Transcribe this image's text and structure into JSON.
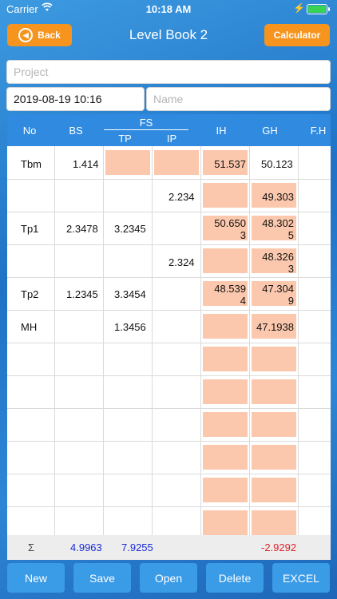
{
  "status_bar": {
    "carrier": "Carrier",
    "time": "10:18 AM"
  },
  "header": {
    "back_label": "Back",
    "title": "Level Book 2",
    "calculator_label": "Calculator"
  },
  "form": {
    "project_placeholder": "Project",
    "date_value": "2019-08-19 10:16",
    "name_placeholder": "Name"
  },
  "table": {
    "headers": {
      "no": "No",
      "bs": "BS",
      "fs": "FS",
      "tp": "TP",
      "ip": "IP",
      "ih": "IH",
      "gh": "GH",
      "fh": "F.H"
    },
    "rows": [
      {
        "no": "Tbm",
        "bs": "1.414",
        "tp": "",
        "ip": "",
        "ih": "51.537",
        "gh": "50.123"
      },
      {
        "no": "",
        "bs": "",
        "tp": "",
        "ip": "2.234",
        "ih": "",
        "gh": "49.303"
      },
      {
        "no": "Tp1",
        "bs": "2.3478",
        "tp": "3.2345",
        "ip": "",
        "ih": "50.650\n3",
        "gh": "48.302\n5"
      },
      {
        "no": "",
        "bs": "",
        "tp": "",
        "ip": "2.324",
        "ih": "",
        "gh": "48.326\n3"
      },
      {
        "no": "Tp2",
        "bs": "1.2345",
        "tp": "3.3454",
        "ip": "",
        "ih": "48.539\n4",
        "gh": "47.304\n9"
      },
      {
        "no": "MH",
        "bs": "",
        "tp": "1.3456",
        "ip": "",
        "ih": "",
        "gh": "47.1938"
      }
    ],
    "summary": {
      "symbol": "Σ",
      "bs_total": "4.9963",
      "tp_total": "7.9255",
      "gh_total": "-2.9292"
    }
  },
  "bottom_bar": {
    "new": "New",
    "save": "Save",
    "open": "Open",
    "delete": "Delete",
    "excel": "EXCEL"
  },
  "colors": {
    "accent": "#f7941d",
    "header_blue": "#2f8ae0",
    "cell_pink": "#fcc8ad",
    "total_blue": "#1a2bd6",
    "total_red": "#e0202a"
  }
}
